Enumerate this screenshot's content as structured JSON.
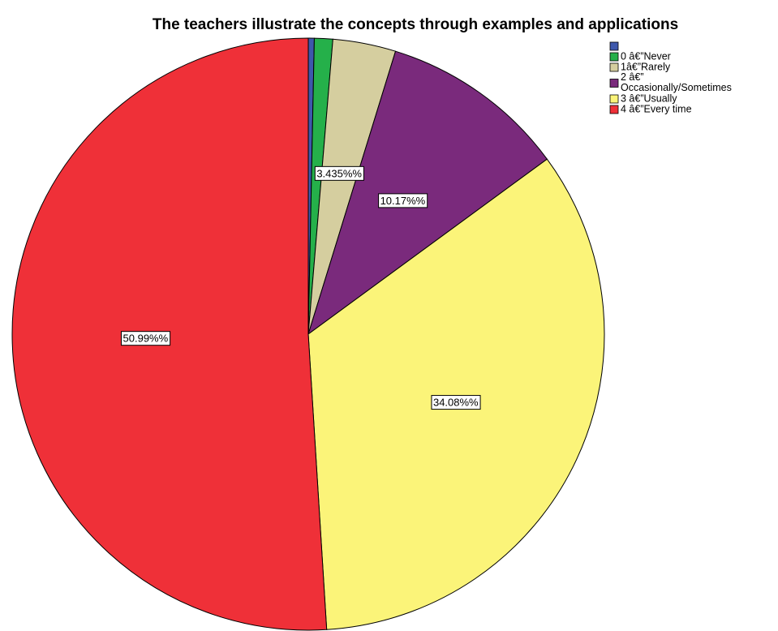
{
  "chart_data": {
    "type": "pie",
    "title": "The teachers illustrate the concepts through examples and applications",
    "categories": [
      null,
      "0 â€”Never",
      "1â€”Rarely",
      "2 â€” Occasionally/Sometimes",
      "3 â€”Usually",
      "4 â€”Every time"
    ],
    "values": [
      0.325,
      1.0,
      3.435,
      10.17,
      34.08,
      50.99
    ],
    "value_labels": [
      null,
      null,
      "3.435%%",
      "10.17%%",
      "34.08%%",
      "50.99%%"
    ],
    "colors": [
      "#3e58ac",
      "#25b04a",
      "#d5ce9f",
      "#7a2a7c",
      "#fbf479",
      "#ef3038"
    ],
    "legend": "top-right"
  }
}
